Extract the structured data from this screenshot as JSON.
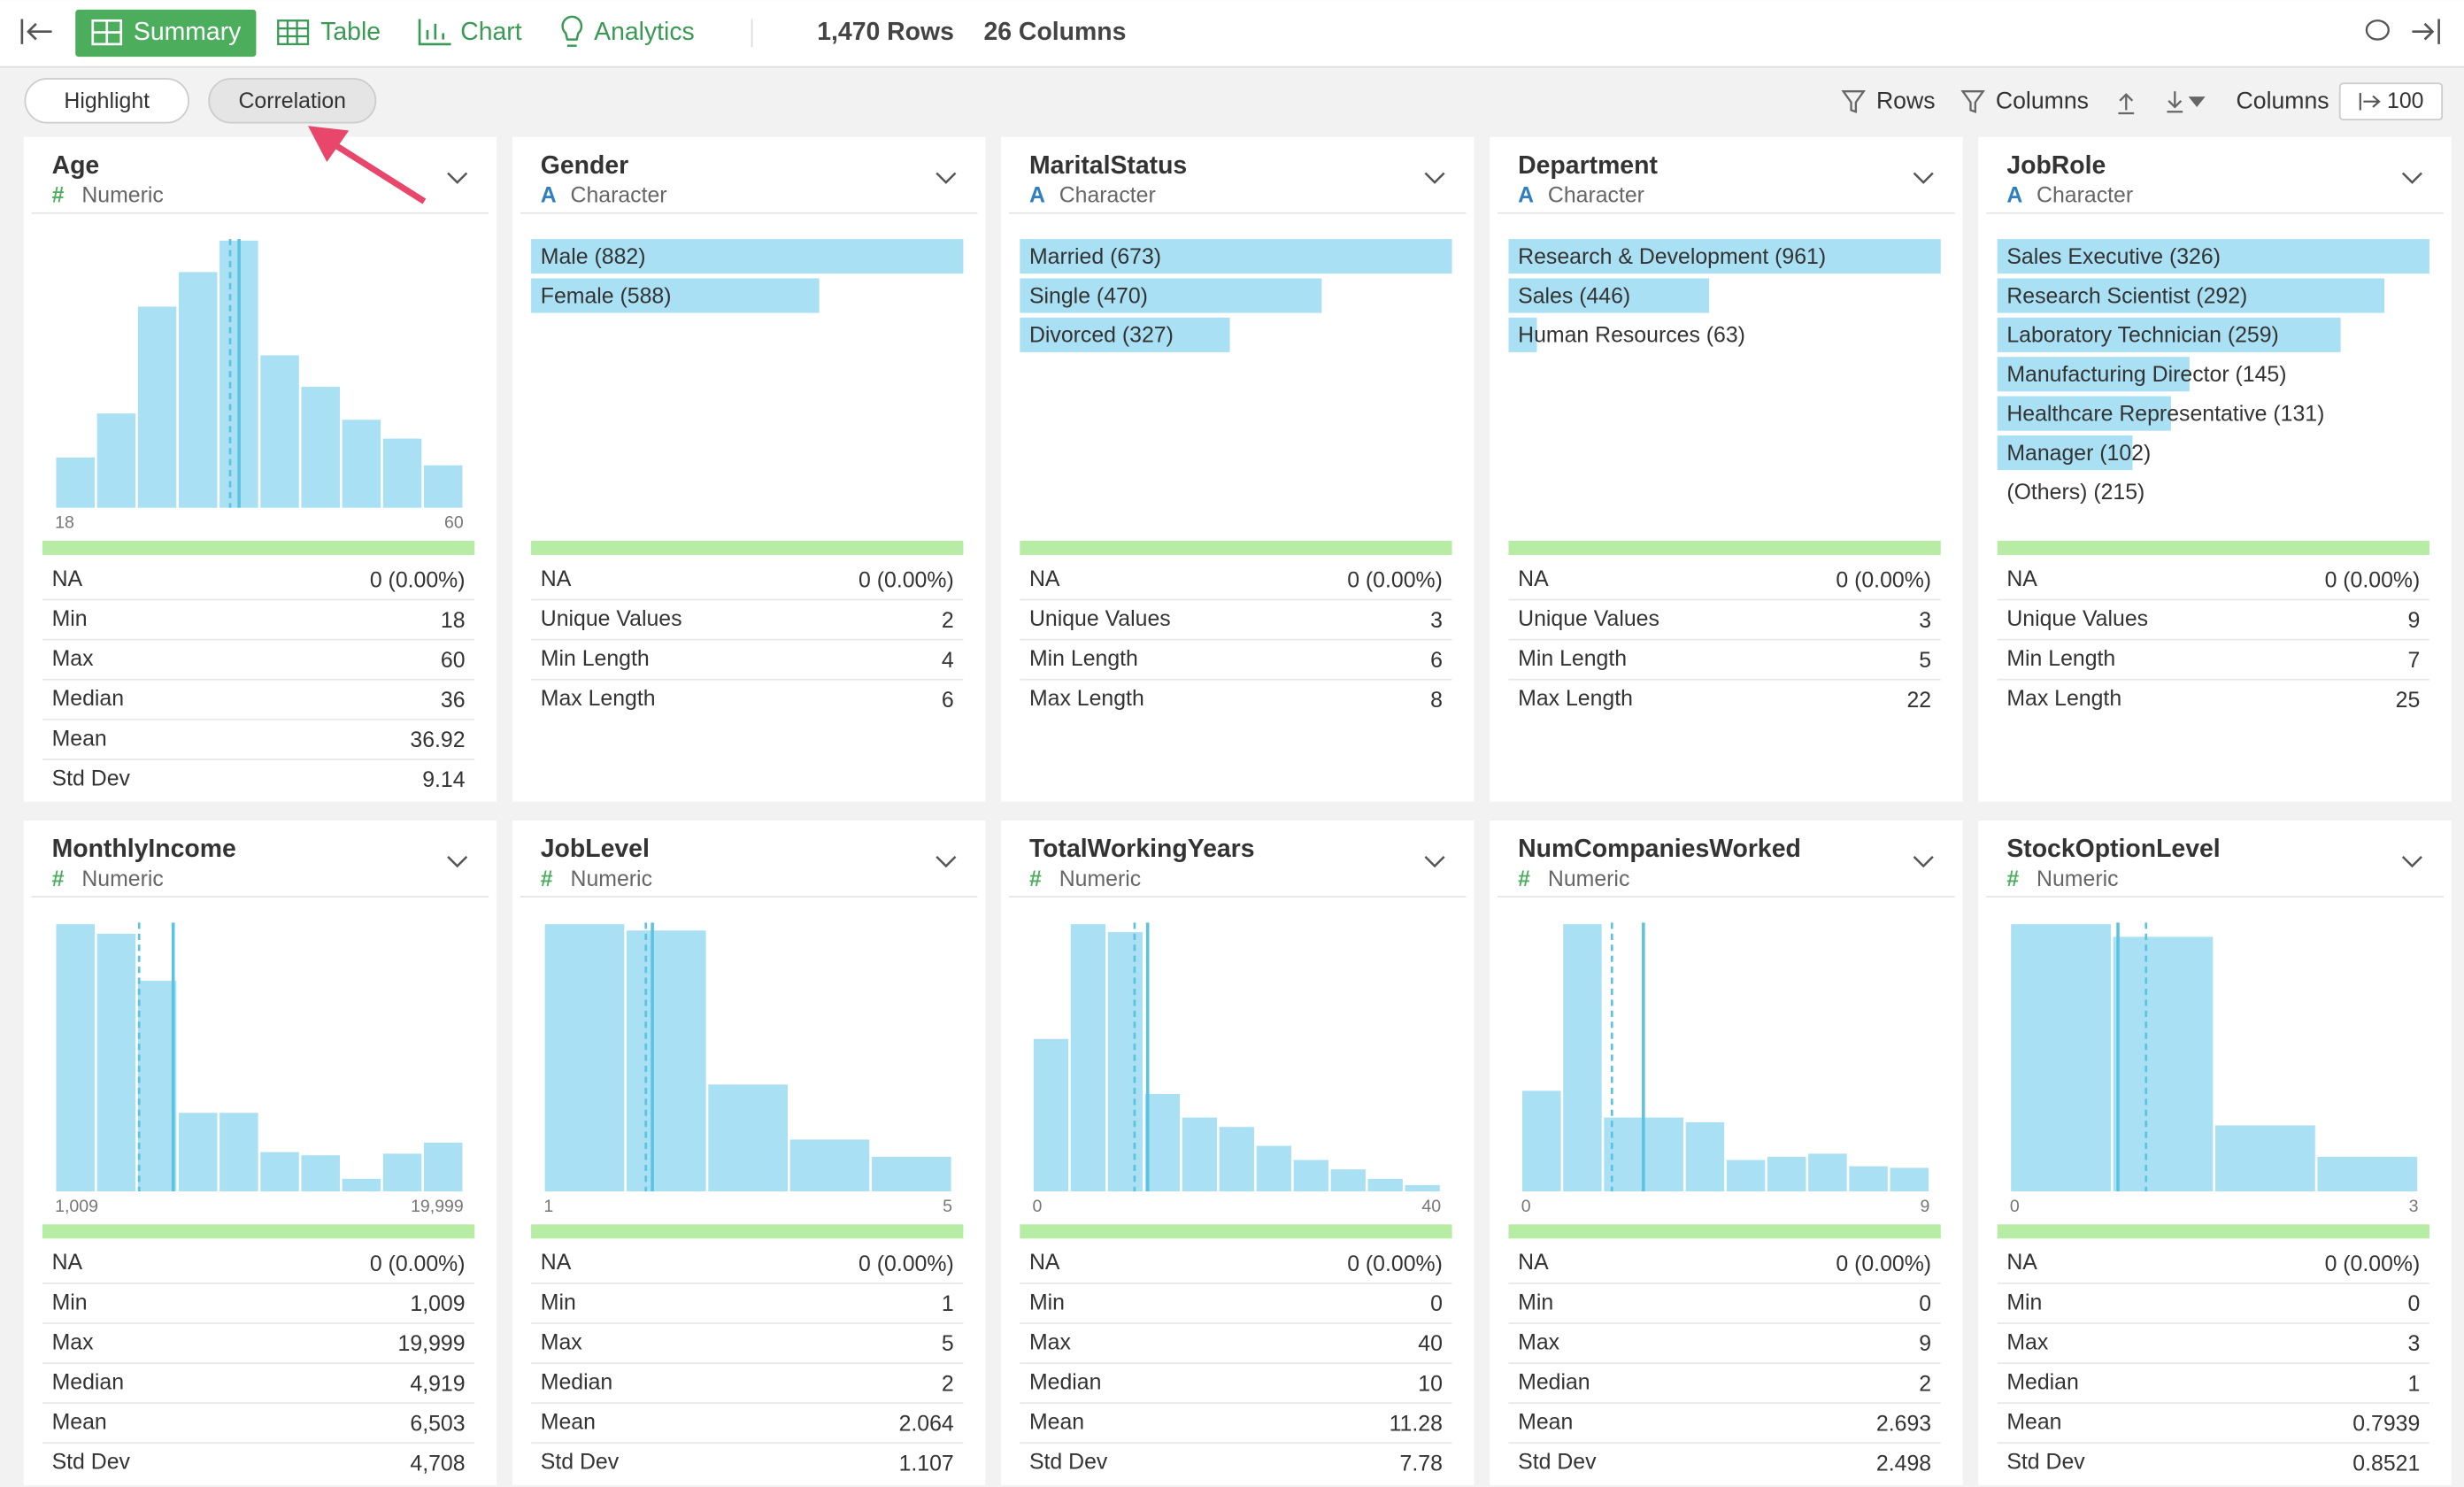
{
  "toolbar": {
    "tabs": [
      "Summary",
      "Table",
      "Chart",
      "Analytics"
    ],
    "rows": "1,470 Rows",
    "columns": "26 Columns"
  },
  "subbar": {
    "buttons": [
      "Highlight",
      "Correlation"
    ],
    "rows": "Rows",
    "columns": "Columns",
    "columns_label": "Columns",
    "limit": "100"
  },
  "cards": [
    {
      "name": "Age",
      "type_icon": "#",
      "type": "Numeric",
      "histogram": {
        "bars": [
          32,
          60,
          128,
          150,
          170,
          97,
          77,
          56,
          44,
          27
        ],
        "xlim": [
          18,
          60
        ],
        "median": 36,
        "mean": 36.92
      },
      "stats": [
        [
          "NA",
          "0 (0.00%)"
        ],
        [
          "Min",
          "18"
        ],
        [
          "Max",
          "60"
        ],
        [
          "Median",
          "36"
        ],
        [
          "Mean",
          "36.92"
        ],
        [
          "Std Dev",
          "9.14"
        ]
      ]
    },
    {
      "name": "Gender",
      "type_icon": "A",
      "type": "Character",
      "levels": [
        {
          "label": "Male (882)",
          "value": 882
        },
        {
          "label": "Female (588)",
          "value": 588
        }
      ],
      "stats": [
        [
          "NA",
          "0 (0.00%)"
        ],
        [
          "Unique Values",
          "2"
        ],
        [
          "Min Length",
          "4"
        ],
        [
          "Max Length",
          "6"
        ]
      ]
    },
    {
      "name": "MaritalStatus",
      "type_icon": "A",
      "type": "Character",
      "levels": [
        {
          "label": "Married (673)",
          "value": 673
        },
        {
          "label": "Single (470)",
          "value": 470
        },
        {
          "label": "Divorced (327)",
          "value": 327
        }
      ],
      "stats": [
        [
          "NA",
          "0 (0.00%)"
        ],
        [
          "Unique Values",
          "3"
        ],
        [
          "Min Length",
          "6"
        ],
        [
          "Max Length",
          "8"
        ]
      ]
    },
    {
      "name": "Department",
      "type_icon": "A",
      "type": "Character",
      "levels": [
        {
          "label": "Research & Development (961)",
          "value": 961
        },
        {
          "label": "Sales (446)",
          "value": 446
        },
        {
          "label": "Human Resources (63)",
          "value": 63
        }
      ],
      "stats": [
        [
          "NA",
          "0 (0.00%)"
        ],
        [
          "Unique Values",
          "3"
        ],
        [
          "Min Length",
          "5"
        ],
        [
          "Max Length",
          "22"
        ]
      ]
    },
    {
      "name": "JobRole",
      "type_icon": "A",
      "type": "Character",
      "levels": [
        {
          "label": "Sales Executive (326)",
          "value": 326
        },
        {
          "label": "Research Scientist (292)",
          "value": 292
        },
        {
          "label": "Laboratory Technician (259)",
          "value": 259
        },
        {
          "label": "Manufacturing Director (145)",
          "value": 145
        },
        {
          "label": "Healthcare Representative (131)",
          "value": 131
        },
        {
          "label": "Manager (102)",
          "value": 102
        },
        {
          "label": "(Others) (215)"
        }
      ],
      "stats": [
        [
          "NA",
          "0 (0.00%)"
        ],
        [
          "Unique Values",
          "9"
        ],
        [
          "Min Length",
          "7"
        ],
        [
          "Max Length",
          "25"
        ]
      ]
    },
    {
      "name": "MonthlyIncome",
      "type_icon": "#",
      "type": "Numeric",
      "histogram": {
        "bars": [
          170,
          164,
          134,
          50,
          50,
          25,
          23,
          8,
          24,
          31
        ],
        "xlim": [
          {
            "value": 1009,
            "label": "1,009"
          },
          {
            "value": 19999,
            "label": "19,999"
          }
        ],
        "median": 4919,
        "mean": 6503
      },
      "stats": [
        [
          "NA",
          "0 (0.00%)"
        ],
        [
          "Min",
          "1,009"
        ],
        [
          "Max",
          "19,999"
        ],
        [
          "Median",
          "4,919"
        ],
        [
          "Mean",
          "6,503"
        ],
        [
          "Std Dev",
          "4,708"
        ]
      ]
    },
    {
      "name": "JobLevel",
      "type_icon": "#",
      "type": "Numeric",
      "histogram": {
        "bars": [
          170,
          166,
          68,
          33,
          22
        ],
        "xlim": [
          1,
          5
        ],
        "median": 2,
        "mean": 2.064
      },
      "stats": [
        [
          "NA",
          "0 (0.00%)"
        ],
        [
          "Min",
          "1"
        ],
        [
          "Max",
          "5"
        ],
        [
          "Median",
          "2"
        ],
        [
          "Mean",
          "2.064"
        ],
        [
          "Std Dev",
          "1.107"
        ]
      ]
    },
    {
      "name": "TotalWorkingYears",
      "type_icon": "#",
      "type": "Numeric",
      "histogram": {
        "bars": [
          97,
          170,
          165,
          62,
          47,
          41,
          29,
          20,
          14,
          8,
          4
        ],
        "xlim": [
          0,
          40
        ],
        "median": 10,
        "mean": 11.28
      },
      "stats": [
        [
          "NA",
          "0 (0.00%)"
        ],
        [
          "Min",
          "0"
        ],
        [
          "Max",
          "40"
        ],
        [
          "Median",
          "10"
        ],
        [
          "Mean",
          "11.28"
        ],
        [
          "Std Dev",
          "7.78"
        ]
      ]
    },
    {
      "name": "NumCompaniesWorked",
      "type_icon": "#",
      "type": "Numeric",
      "histogram": {
        "bars": [
          64,
          170,
          47,
          47,
          44,
          20,
          22,
          24,
          16,
          15
        ],
        "xlim": [
          0,
          9
        ],
        "median": 2,
        "mean": 2.693
      },
      "stats": [
        [
          "NA",
          "0 (0.00%)"
        ],
        [
          "Min",
          "0"
        ],
        [
          "Max",
          "9"
        ],
        [
          "Median",
          "2"
        ],
        [
          "Mean",
          "2.693"
        ],
        [
          "Std Dev",
          "2.498"
        ]
      ]
    },
    {
      "name": "StockOptionLevel",
      "type_icon": "#",
      "type": "Numeric",
      "histogram": {
        "bars": [
          170,
          162,
          42,
          22
        ],
        "xlim": [
          0,
          3
        ],
        "median": 1,
        "mean": 0.7939
      },
      "stats": [
        [
          "NA",
          "0 (0.00%)"
        ],
        [
          "Min",
          "0"
        ],
        [
          "Max",
          "3"
        ],
        [
          "Median",
          "1"
        ],
        [
          "Mean",
          "0.7939"
        ],
        [
          "Std Dev",
          "0.8521"
        ]
      ]
    }
  ]
}
